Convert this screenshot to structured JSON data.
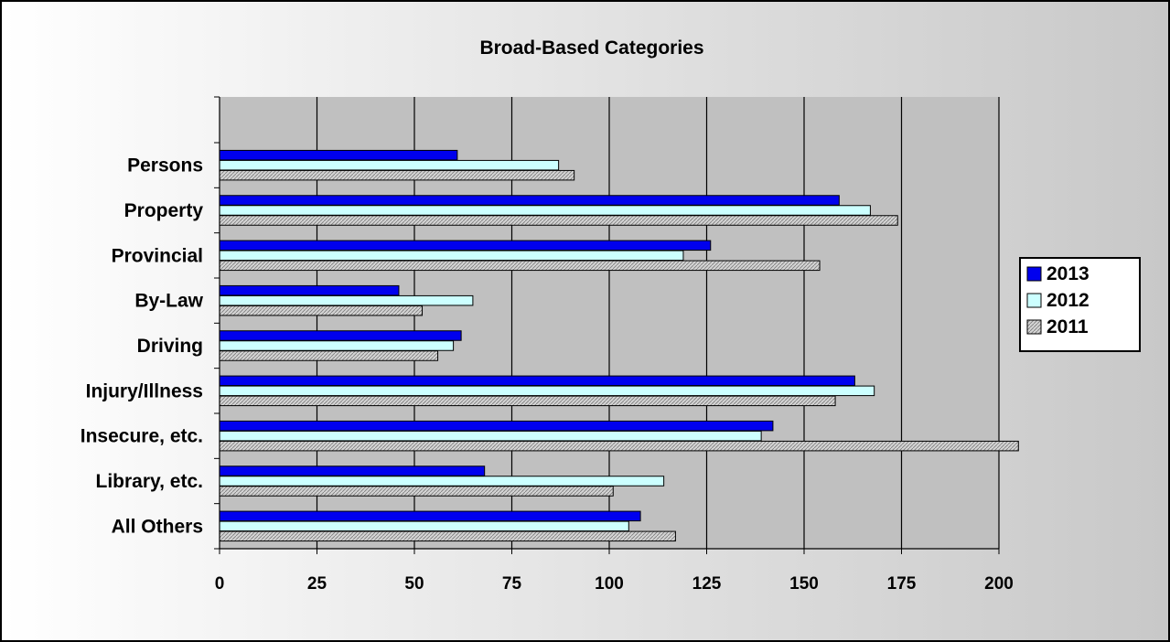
{
  "chart_data": {
    "type": "bar",
    "orientation": "horizontal",
    "title": "Broad-Based Categories",
    "xlabel": "",
    "ylabel": "",
    "categories": [
      "Persons",
      "Property",
      "Provincial",
      "By-Law",
      "Driving",
      "Injury/Illness",
      "Insecure, etc.",
      "Library, etc.",
      "All Others"
    ],
    "series": [
      {
        "name": "2013",
        "color": "#0000ee",
        "values": [
          61,
          159,
          126,
          46,
          62,
          163,
          142,
          68,
          108
        ]
      },
      {
        "name": "2012",
        "color": "#ccffff",
        "values": [
          87,
          167,
          119,
          65,
          60,
          168,
          139,
          114,
          105
        ]
      },
      {
        "name": "2011",
        "color": "#c8c8c8",
        "values": [
          91,
          174,
          154,
          52,
          56,
          158,
          205,
          101,
          117
        ]
      }
    ],
    "xlim": [
      0,
      200
    ],
    "xticks": [
      0,
      25,
      50,
      75,
      100,
      125,
      150,
      175,
      200
    ],
    "grid": "vertical",
    "plot_background": "#c0c0c0",
    "legend_position": "right"
  }
}
